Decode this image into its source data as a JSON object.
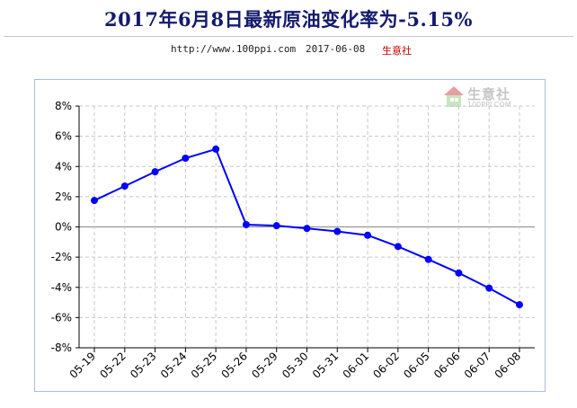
{
  "header": {
    "title": "2017年6月8日最新原油变化率为-5.15%",
    "url": "http://www.100ppi.com",
    "date": "2017-06-08",
    "brand": "生意社"
  },
  "watermark": {
    "text": "生意社",
    "sub": "100PPI.COM",
    "logo_icon": "house-logo-icon"
  },
  "colors": {
    "title": "#141a6e",
    "series": "#0000ff",
    "grid": "#c8c8c8",
    "frame": "#a9bfdc",
    "brand": "#c00000"
  },
  "chart_data": {
    "type": "line",
    "title": "2017年6月8日最新原油变化率为-5.15%",
    "xlabel": "",
    "ylabel": "",
    "ylim": [
      -8,
      8
    ],
    "yticks": [
      -8,
      -6,
      -4,
      -2,
      0,
      2,
      4,
      6,
      8
    ],
    "ytick_suffix": "%",
    "grid": true,
    "categories": [
      "05-19",
      "05-22",
      "05-23",
      "05-24",
      "05-25",
      "05-26",
      "05-29",
      "05-30",
      "05-31",
      "06-01",
      "06-02",
      "06-05",
      "06-06",
      "06-07",
      "06-08"
    ],
    "series": [
      {
        "values": [
          1.75,
          2.7,
          3.65,
          4.55,
          5.15,
          0.15,
          0.08,
          -0.1,
          -0.3,
          -0.55,
          -1.3,
          -2.15,
          -3.05,
          -4.05,
          -5.15
        ]
      }
    ]
  }
}
